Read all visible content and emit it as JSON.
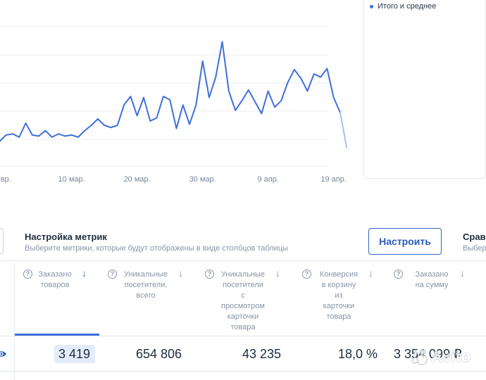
{
  "chart_data": {
    "type": "line",
    "title": "",
    "xlabel": "",
    "ylabel": "",
    "x_tick_labels": [
      "евр.",
      "10 мар.",
      "20 мар.",
      "30 мар.",
      "9 апр.",
      "19 апр."
    ],
    "x_tick_days": [
      0,
      10,
      20,
      30,
      40,
      50
    ],
    "grid": true,
    "series": [
      {
        "name": "Итого и среднее",
        "color": "#3f6fdc",
        "x_start_day": -1,
        "values": [
          83,
          89,
          90,
          87,
          100,
          89,
          88,
          93,
          87,
          90,
          88,
          89,
          87,
          93,
          98,
          104,
          98,
          96,
          98,
          117,
          125,
          107,
          124,
          102,
          105,
          125,
          122,
          95,
          117,
          99,
          117,
          158,
          124,
          143,
          176,
          130,
          112,
          121,
          131,
          120,
          109,
          130,
          115,
          121,
          138,
          150,
          142,
          130,
          146,
          143,
          151,
          124,
          110,
          77
        ]
      }
    ],
    "ylim": [
      60,
      190
    ],
    "last_segment_faded": true
  },
  "legend": {
    "label": "Итого и среднее"
  },
  "metrics_settings": {
    "title": "Настройка метрик",
    "description": "Выберите метрики, которые будут отображены в виде столбцов таблицы",
    "configure_label": "Настроить"
  },
  "comparison": {
    "title": "Срав",
    "description": "Выбер"
  },
  "table": {
    "columns": [
      {
        "label": "Заказано\nтоваров",
        "value": "3 419",
        "sorted": true
      },
      {
        "label": "Уникальные\nпосетители,\nвсего",
        "value": "654 806",
        "sorted": false
      },
      {
        "label": "Уникальные\nпосетители\nс\nпросмотром\nкарточки\nтовара",
        "value": "43 235",
        "sorted": false
      },
      {
        "label": "Конверсия\nв корзину\nиз\nкарточки\nтовара",
        "value": "18,0 %",
        "sorted": false
      },
      {
        "label": "Заказано\nна сумму",
        "value": "3 354 099 ₽",
        "sorted": false
      }
    ]
  },
  "icons": {
    "help": "question-circle-icon",
    "sort": "arrow-down-icon",
    "row_toggle": "eye-icon"
  },
  "watermark": {
    "text": "Avito"
  },
  "colors": {
    "accent": "#3f6fdc",
    "button_border": "#2f65c8",
    "muted_text": "#8a95a5",
    "highlight": "#e3ecfa"
  }
}
